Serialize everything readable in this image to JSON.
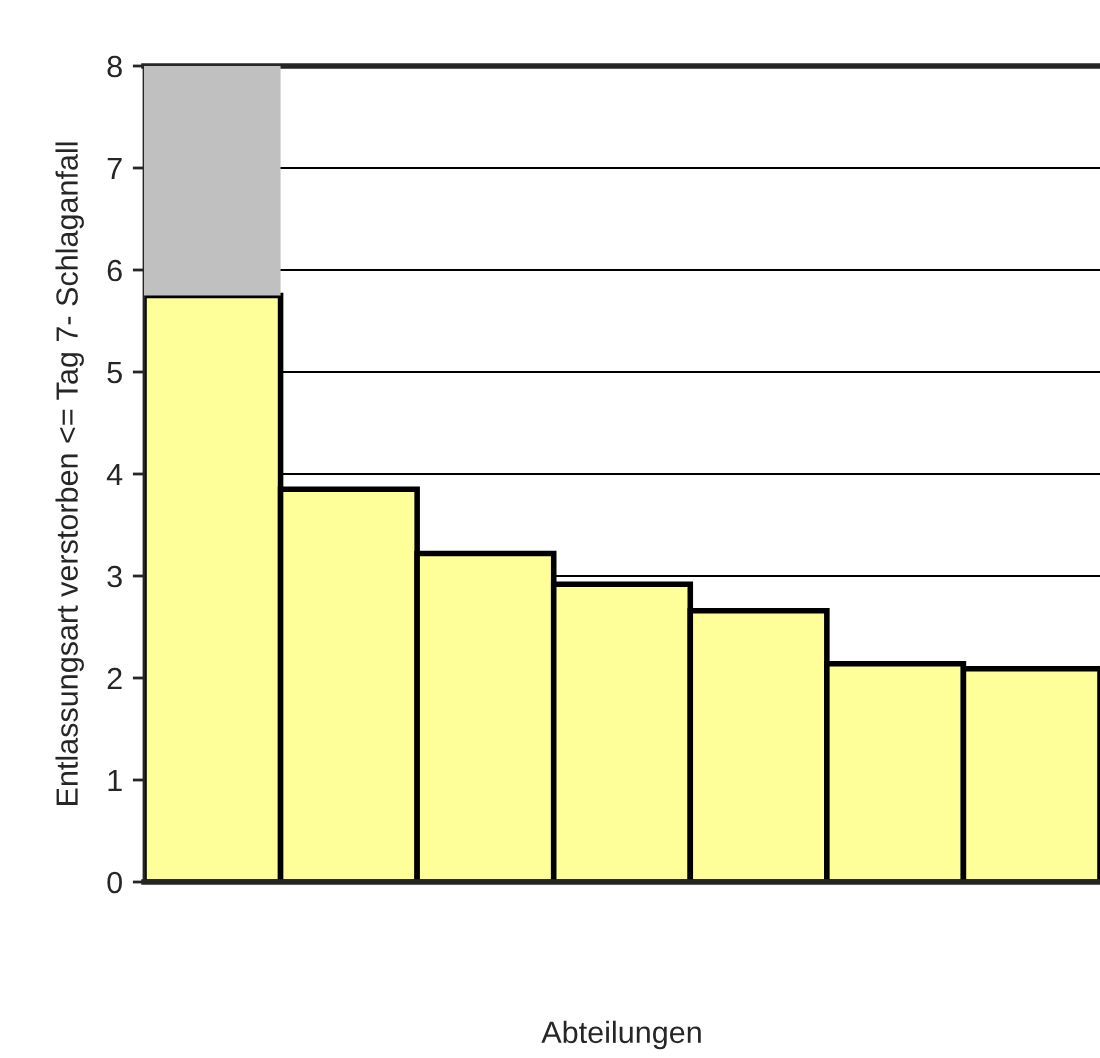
{
  "chart_data": {
    "type": "bar",
    "stacked": true,
    "xlabel": "Abteilungen",
    "ylabel": "Entlassungsart verstorben <= Tag 7- Schlaganfall",
    "categories": [
      null,
      null,
      null,
      null,
      null,
      null,
      null
    ],
    "series": [
      {
        "color": "#ffff99",
        "values": [
          5.75,
          3.85,
          3.22,
          2.92,
          2.66,
          2.14,
          2.09
        ]
      },
      {
        "color": "#c0c0c0",
        "values": [
          2.25,
          null,
          null,
          null,
          null,
          null,
          null
        ]
      }
    ],
    "ylim": [
      0,
      8
    ],
    "yticks": [
      0,
      1,
      2,
      3,
      4,
      5,
      6,
      7,
      8
    ],
    "grid": "y",
    "legend": false
  }
}
